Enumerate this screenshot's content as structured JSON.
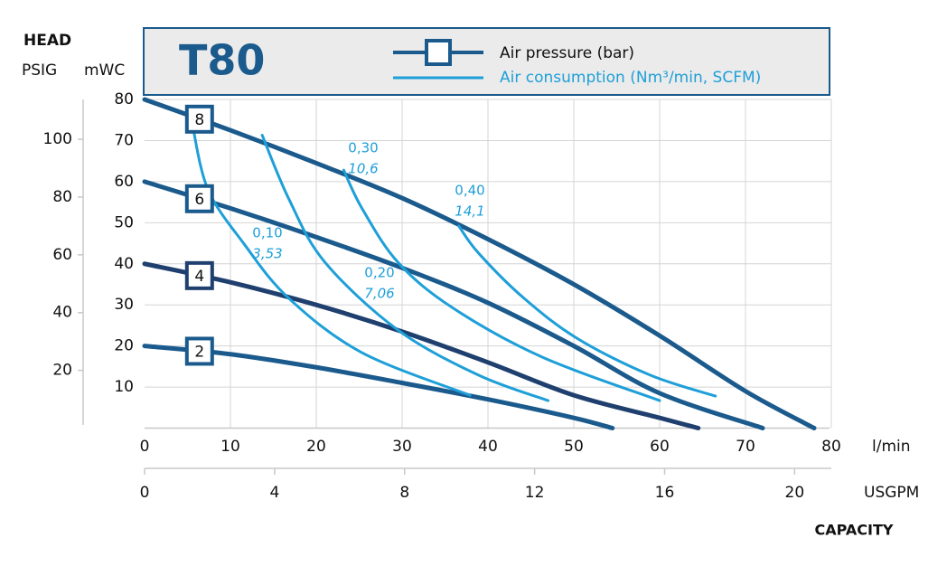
{
  "chart_data": {
    "type": "line",
    "title": "T80",
    "head_label": "HEAD",
    "ylabel": "mWC",
    "y2label": "PSIG",
    "xlabel": "l/min",
    "x2label": "USGPM",
    "capacity_label": "CAPACITY",
    "xlim": [
      0,
      80
    ],
    "xticks": [
      0,
      10,
      20,
      30,
      40,
      50,
      60,
      70,
      80
    ],
    "x2lim": [
      0,
      21.13
    ],
    "x2ticks": [
      0,
      4,
      8,
      12,
      16,
      20
    ],
    "ylim": [
      0,
      80
    ],
    "yticks": [
      10,
      20,
      30,
      40,
      50,
      60,
      70,
      80
    ],
    "y2lim": [
      0,
      113.8
    ],
    "y2ticks": [
      20,
      40,
      60,
      80,
      100
    ],
    "grid": true,
    "legend": [
      {
        "name": "Air pressure (bar)",
        "color": "#1b5a8c"
      },
      {
        "name": "Air consumption (Nm³/min, SCFM)",
        "color": "#1e9fd8"
      }
    ],
    "series": [
      {
        "name": "8",
        "kind": "pressure",
        "color": "#1b5a8c",
        "x": [
          0,
          10,
          20,
          30,
          40,
          50,
          60,
          70,
          78
        ],
        "values": [
          80,
          72.5,
          64.5,
          56,
          46,
          35,
          22.5,
          9,
          0
        ]
      },
      {
        "name": "6",
        "kind": "pressure",
        "color": "#1b5a8c",
        "x": [
          0,
          10,
          20,
          30,
          40,
          50,
          60,
          72
        ],
        "values": [
          60,
          53.5,
          46.5,
          39,
          30.5,
          20,
          8.5,
          0
        ]
      },
      {
        "name": "4",
        "kind": "pressure",
        "color": "#1f3f6e",
        "x": [
          0,
          10,
          20,
          30,
          40,
          50,
          60,
          64.5
        ],
        "values": [
          40,
          35.5,
          30,
          23.5,
          16,
          8,
          2.5,
          0
        ]
      },
      {
        "name": "2",
        "kind": "pressure",
        "color": "#1b5a8c",
        "x": [
          0,
          10,
          20,
          30,
          40,
          50,
          54.5
        ],
        "values": [
          20,
          18,
          14.8,
          11,
          7,
          2.5,
          0
        ]
      },
      {
        "name": "0,10",
        "name2": "3,53",
        "kind": "consumption",
        "color": "#1e9fd8",
        "x": [
          5.6,
          7.4,
          11.6,
          16.8,
          25.3,
          37.9
        ],
        "values": [
          73.5,
          58,
          44.8,
          31.6,
          18.4,
          8
        ]
      },
      {
        "name": "0,20",
        "name2": "7,06",
        "kind": "consumption",
        "color": "#1e9fd8",
        "x": [
          13.7,
          16.8,
          21,
          29.5,
          38.9,
          47
        ],
        "values": [
          71.3,
          55.8,
          40.4,
          23.9,
          12.9,
          6.7
        ]
      },
      {
        "name": "0,30",
        "name2": "10,6",
        "kind": "consumption",
        "color": "#1e9fd8",
        "x": [
          23.2,
          25.3,
          29.5,
          35.8,
          46.3,
          60
        ],
        "values": [
          62.8,
          53.6,
          40.4,
          29.4,
          17.3,
          6.7
        ]
      },
      {
        "name": "0,40",
        "name2": "14,1",
        "kind": "consumption",
        "color": "#1e9fd8",
        "x": [
          36.6,
          38.9,
          44.2,
          50.5,
          58.9,
          66.5
        ],
        "values": [
          49.2,
          42.6,
          31.6,
          21.7,
          12.9,
          7.8
        ]
      }
    ]
  }
}
